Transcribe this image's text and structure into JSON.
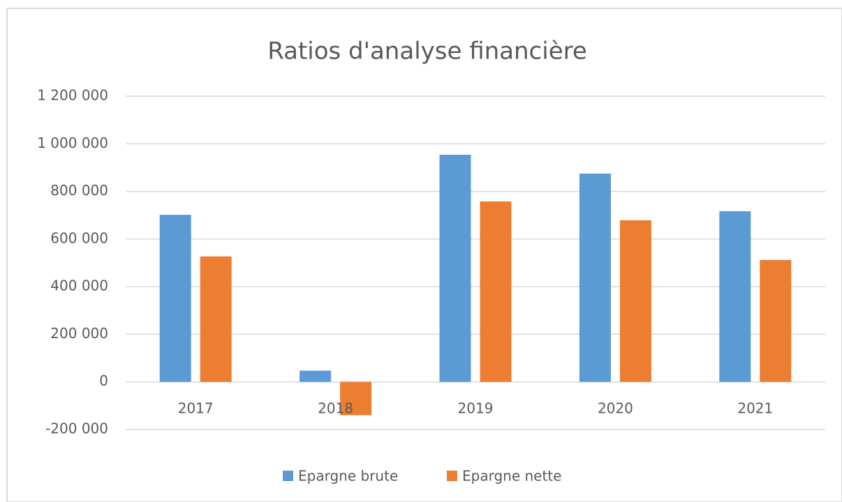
{
  "chart_data": {
    "type": "bar",
    "title": "Ratios d'analyse financière",
    "categories": [
      "2017",
      "2018",
      "2019",
      "2020",
      "2021"
    ],
    "series": [
      {
        "name": "Epargne brute",
        "color": "#5b9bd5",
        "values": [
          702000,
          47000,
          954000,
          875000,
          717000
        ]
      },
      {
        "name": "Epargne nette",
        "color": "#ed7d31",
        "values": [
          527000,
          -140000,
          758000,
          679000,
          512000
        ]
      }
    ],
    "ylim": [
      -200000,
      1200000
    ],
    "yticks": [
      {
        "value": -200000,
        "label": "-200 000"
      },
      0,
      {
        "value": 200000,
        "label": "200 000"
      },
      {
        "value": 400000,
        "label": "400 000"
      },
      {
        "value": 600000,
        "label": "600 000"
      },
      {
        "value": 800000,
        "label": "800 000"
      },
      {
        "value": 1000000,
        "label": "1 000 000"
      },
      {
        "value": 1200000,
        "label": "1 200 000"
      }
    ],
    "grid": true,
    "legend": "bottom"
  }
}
